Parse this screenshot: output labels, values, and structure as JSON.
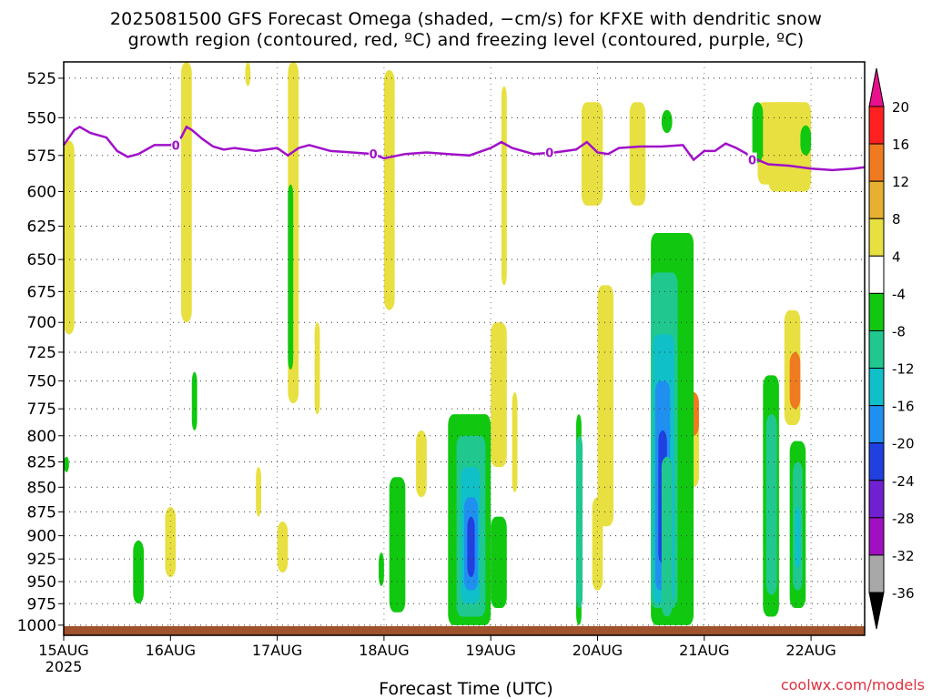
{
  "title_line1": "2025081500 GFS Forecast Omega (shaded, −cm/s) for KFXE with dendritic snow",
  "title_line2": "growth region (contoured, red, ºC) and freezing level (contoured, purple, ºC)",
  "xlabel": "Forecast Time (UTC)",
  "credit": "coolwx.com/models",
  "year_label": "2025",
  "chart_data": {
    "type": "heatmap",
    "x_ticks": [
      "15AUG",
      "16AUG",
      "17AUG",
      "18AUG",
      "19AUG",
      "20AUG",
      "21AUG",
      "22AUG"
    ],
    "x_range_days": [
      0,
      7.5
    ],
    "y_ticks": [
      525,
      550,
      575,
      600,
      625,
      650,
      675,
      700,
      725,
      750,
      775,
      800,
      825,
      850,
      875,
      900,
      925,
      950,
      975,
      1000
    ],
    "y_range_hpa": [
      515,
      1012
    ],
    "y_scale": "log-pressure",
    "grid": true,
    "colorbar": {
      "labels": [
        20,
        16,
        12,
        8,
        4,
        -4,
        -8,
        -12,
        -16,
        -20,
        -24,
        -28,
        -32,
        -36
      ],
      "bins": [
        {
          "range": [
            16,
            20
          ],
          "color": "#ff2020"
        },
        {
          "range": [
            12,
            16
          ],
          "color": "#f07a20"
        },
        {
          "range": [
            8,
            12
          ],
          "color": "#e8b030"
        },
        {
          "range": [
            4,
            8
          ],
          "color": "#e8e040"
        },
        {
          "range": [
            -4,
            4
          ],
          "color": "#ffffff"
        },
        {
          "range": [
            -8,
            -4
          ],
          "color": "#10c810"
        },
        {
          "range": [
            -12,
            -8
          ],
          "color": "#20c890"
        },
        {
          "range": [
            -16,
            -12
          ],
          "color": "#10c0c8"
        },
        {
          "range": [
            -20,
            -16
          ],
          "color": "#2090f0"
        },
        {
          "range": [
            -24,
            -20
          ],
          "color": "#2040e0"
        },
        {
          "range": [
            -28,
            -24
          ],
          "color": "#7020d0"
        },
        {
          "range": [
            -32,
            -28
          ],
          "color": "#a010c0"
        },
        {
          "range": [
            -36,
            -32
          ],
          "color": "#a8a8a8"
        }
      ],
      "top_arrow_color": "#e8108c",
      "bottom_arrow_color": "#000000"
    },
    "freezing_level": {
      "label": "0",
      "color": "#a010c8",
      "t": [
        0,
        0.1,
        0.15,
        0.25,
        0.4,
        0.5,
        0.6,
        0.7,
        0.85,
        1.0,
        1.1,
        1.15,
        1.2,
        1.3,
        1.4,
        1.5,
        1.6,
        1.8,
        2.0,
        2.1,
        2.2,
        2.3,
        2.5,
        2.7,
        2.9,
        3.0,
        3.2,
        3.4,
        3.6,
        3.8,
        4.0,
        4.1,
        4.2,
        4.4,
        4.6,
        4.8,
        4.9,
        5.0,
        5.1,
        5.2,
        5.4,
        5.6,
        5.8,
        5.9,
        6.0,
        6.1,
        6.2,
        6.3,
        6.5,
        6.6,
        6.8,
        7.0,
        7.2,
        7.4,
        7.5
      ],
      "p": [
        568,
        558,
        556,
        560,
        563,
        572,
        576,
        574,
        568,
        568,
        563,
        556,
        558,
        564,
        569,
        571,
        570,
        572,
        570,
        575,
        570,
        568,
        572,
        573,
        574,
        577,
        574,
        573,
        574,
        575,
        570,
        566,
        570,
        574,
        573,
        571,
        566,
        573,
        574,
        570,
        569,
        569,
        568,
        578,
        572,
        572,
        567,
        570,
        578,
        581,
        582,
        584,
        585,
        584,
        583
      ]
    },
    "omega_features": [
      {
        "t0": 0.0,
        "t1": 0.1,
        "p0": 565,
        "p1": 710,
        "color": "#e8e040"
      },
      {
        "t0": 1.1,
        "t1": 1.2,
        "p0": 515,
        "p1": 700,
        "color": "#e8e040"
      },
      {
        "t0": 1.7,
        "t1": 1.75,
        "p0": 515,
        "p1": 530,
        "color": "#e8e040"
      },
      {
        "t0": 2.1,
        "t1": 2.2,
        "p0": 515,
        "p1": 770,
        "color": "#e8e040"
      },
      {
        "t0": 2.35,
        "t1": 2.4,
        "p0": 700,
        "p1": 780,
        "color": "#e8e040"
      },
      {
        "t0": 3.0,
        "t1": 3.1,
        "p0": 520,
        "p1": 690,
        "color": "#e8e040"
      },
      {
        "t0": 4.1,
        "t1": 4.15,
        "p0": 530,
        "p1": 670,
        "color": "#e8e040"
      },
      {
        "t0": 4.0,
        "t1": 4.15,
        "p0": 700,
        "p1": 830,
        "color": "#e8e040"
      },
      {
        "t0": 4.2,
        "t1": 4.25,
        "p0": 760,
        "p1": 855,
        "color": "#e8e040"
      },
      {
        "t0": 1.8,
        "t1": 1.85,
        "p0": 830,
        "p1": 880,
        "color": "#e8e040"
      },
      {
        "t0": 0.95,
        "t1": 1.05,
        "p0": 870,
        "p1": 945,
        "color": "#e8e040"
      },
      {
        "t0": 2.0,
        "t1": 2.1,
        "p0": 885,
        "p1": 940,
        "color": "#e8e040"
      },
      {
        "t0": 3.3,
        "t1": 3.4,
        "p0": 795,
        "p1": 860,
        "color": "#e8e040"
      },
      {
        "t0": 5.0,
        "t1": 5.15,
        "p0": 670,
        "p1": 890,
        "color": "#e8e040"
      },
      {
        "t0": 4.95,
        "t1": 5.05,
        "p0": 860,
        "p1": 960,
        "color": "#e8e040"
      },
      {
        "t0": 6.5,
        "t1": 6.9,
        "p0": 540,
        "p1": 595,
        "color": "#e8e040"
      },
      {
        "t0": 6.6,
        "t1": 7.0,
        "p0": 540,
        "p1": 600,
        "color": "#e8e040"
      },
      {
        "t0": 6.9,
        "t1": 7.0,
        "p0": 555,
        "p1": 575,
        "color": "#10c810"
      },
      {
        "t0": 6.45,
        "t1": 6.55,
        "p0": 540,
        "p1": 580,
        "color": "#10c810"
      },
      {
        "t0": 4.85,
        "t1": 5.05,
        "p0": 540,
        "p1": 610,
        "color": "#e8e040"
      },
      {
        "t0": 5.3,
        "t1": 5.45,
        "p0": 540,
        "p1": 610,
        "color": "#e8e040"
      },
      {
        "t0": 5.6,
        "t1": 5.7,
        "p0": 545,
        "p1": 560,
        "color": "#10c810"
      },
      {
        "t0": 5.65,
        "t1": 5.9,
        "p0": 630,
        "p1": 800,
        "color": "#e8e040"
      },
      {
        "t0": 5.7,
        "t1": 5.85,
        "p0": 640,
        "p1": 770,
        "color": "#f07a20"
      },
      {
        "t0": 5.8,
        "t1": 5.95,
        "p0": 760,
        "p1": 850,
        "color": "#e8e040"
      },
      {
        "t0": 5.85,
        "t1": 5.95,
        "p0": 760,
        "p1": 800,
        "color": "#f07a20"
      },
      {
        "t0": 6.75,
        "t1": 6.9,
        "p0": 690,
        "p1": 790,
        "color": "#e8e040"
      },
      {
        "t0": 6.8,
        "t1": 6.9,
        "p0": 725,
        "p1": 775,
        "color": "#f07a20"
      },
      {
        "t0": 2.1,
        "t1": 2.15,
        "p0": 595,
        "p1": 740,
        "color": "#10c810"
      },
      {
        "t0": 1.2,
        "t1": 1.25,
        "p0": 742,
        "p1": 795,
        "color": "#10c810"
      },
      {
        "t0": 0.0,
        "t1": 0.05,
        "p0": 820,
        "p1": 835,
        "color": "#10c810"
      },
      {
        "t0": 0.65,
        "t1": 0.75,
        "p0": 905,
        "p1": 975,
        "color": "#10c810"
      },
      {
        "t0": 2.95,
        "t1": 3.0,
        "p0": 918,
        "p1": 955,
        "color": "#10c810"
      },
      {
        "t0": 3.05,
        "t1": 3.2,
        "p0": 840,
        "p1": 985,
        "color": "#10c810"
      },
      {
        "t0": 3.6,
        "t1": 4.0,
        "p0": 780,
        "p1": 1000,
        "color": "#10c810"
      },
      {
        "t0": 3.68,
        "t1": 3.95,
        "p0": 800,
        "p1": 990,
        "color": "#20c890"
      },
      {
        "t0": 3.72,
        "t1": 3.9,
        "p0": 830,
        "p1": 975,
        "color": "#10c0c8"
      },
      {
        "t0": 3.75,
        "t1": 3.88,
        "p0": 860,
        "p1": 960,
        "color": "#2090f0"
      },
      {
        "t0": 3.78,
        "t1": 3.85,
        "p0": 880,
        "p1": 945,
        "color": "#2040e0"
      },
      {
        "t0": 4.0,
        "t1": 4.15,
        "p0": 880,
        "p1": 980,
        "color": "#10c810"
      },
      {
        "t0": 4.8,
        "t1": 4.85,
        "p0": 780,
        "p1": 1000,
        "color": "#10c810"
      },
      {
        "t0": 4.8,
        "t1": 4.86,
        "p0": 800,
        "p1": 980,
        "color": "#20c890"
      },
      {
        "t0": 5.5,
        "t1": 5.9,
        "p0": 630,
        "p1": 1000,
        "color": "#10c810"
      },
      {
        "t0": 5.5,
        "t1": 5.75,
        "p0": 660,
        "p1": 980,
        "color": "#20c890"
      },
      {
        "t0": 5.52,
        "t1": 5.72,
        "p0": 710,
        "p1": 975,
        "color": "#10c0c8"
      },
      {
        "t0": 5.54,
        "t1": 5.68,
        "p0": 750,
        "p1": 960,
        "color": "#2090f0"
      },
      {
        "t0": 5.57,
        "t1": 5.65,
        "p0": 795,
        "p1": 930,
        "color": "#2040e0"
      },
      {
        "t0": 5.6,
        "t1": 5.7,
        "p0": 820,
        "p1": 990,
        "color": "#20c890"
      },
      {
        "t0": 6.55,
        "t1": 6.7,
        "p0": 745,
        "p1": 990,
        "color": "#10c810"
      },
      {
        "t0": 6.58,
        "t1": 6.68,
        "p0": 780,
        "p1": 965,
        "color": "#20c890"
      },
      {
        "t0": 6.8,
        "t1": 6.95,
        "p0": 805,
        "p1": 980,
        "color": "#10c810"
      },
      {
        "t0": 6.83,
        "t1": 6.92,
        "p0": 825,
        "p1": 960,
        "color": "#20c890"
      },
      {
        "t0": 6.85,
        "t1": 6.9,
        "p0": 870,
        "p1": 935,
        "color": "#10c0c8"
      }
    ]
  }
}
